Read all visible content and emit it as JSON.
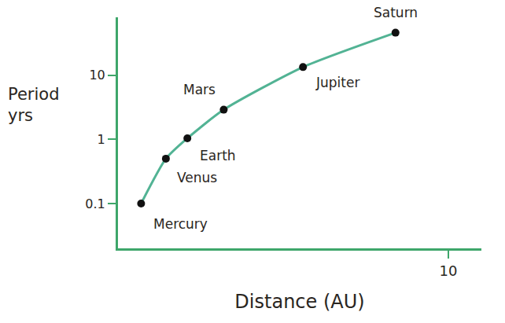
{
  "chart_data": {
    "type": "line",
    "xlabel": "Distance (AU)",
    "ylabel": "Period yrs",
    "x": [
      0.7,
      1.45,
      2.1,
      3.2,
      5.6,
      8.4
    ],
    "values": [
      0.1,
      0.5,
      1.04,
      2.9,
      13.4,
      46
    ],
    "labels": [
      "Mercury",
      "Venus",
      "Earth",
      "Mars",
      "Jupiter",
      "Saturn"
    ],
    "color": "#52b394",
    "marker": "circle",
    "log": "y",
    "xlim": [
      0,
      11
    ],
    "xticks": [
      10
    ],
    "ylim": [
      0.02,
      80
    ],
    "yticks": [
      0.1,
      1,
      10
    ],
    "grid": false
  }
}
